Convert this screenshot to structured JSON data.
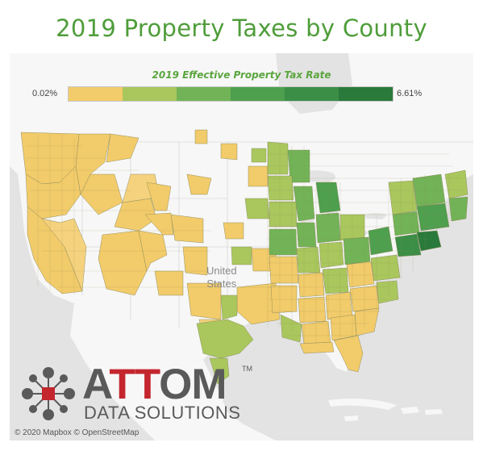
{
  "title": "2019 Property Taxes by County",
  "legend": {
    "title": "2019 Effective Property Tax Rate",
    "min_label": "0.02%",
    "max_label": "6.61%",
    "colors": [
      "#f2cb6a",
      "#a9c75d",
      "#71b356",
      "#4e9f4e",
      "#3b8e46",
      "#2a7a3b"
    ]
  },
  "map": {
    "country_label_line1": "United",
    "country_label_line2": "States",
    "land_color": "#f7f7f7",
    "water_color": "#e3e3e3"
  },
  "logo": {
    "name": "ATTOM",
    "tagline": "DATA SOLUTIONS",
    "trademark": "TM",
    "accent_color": "#c4262e"
  },
  "attribution": "© 2020 Mapbox © OpenStreetMap"
}
